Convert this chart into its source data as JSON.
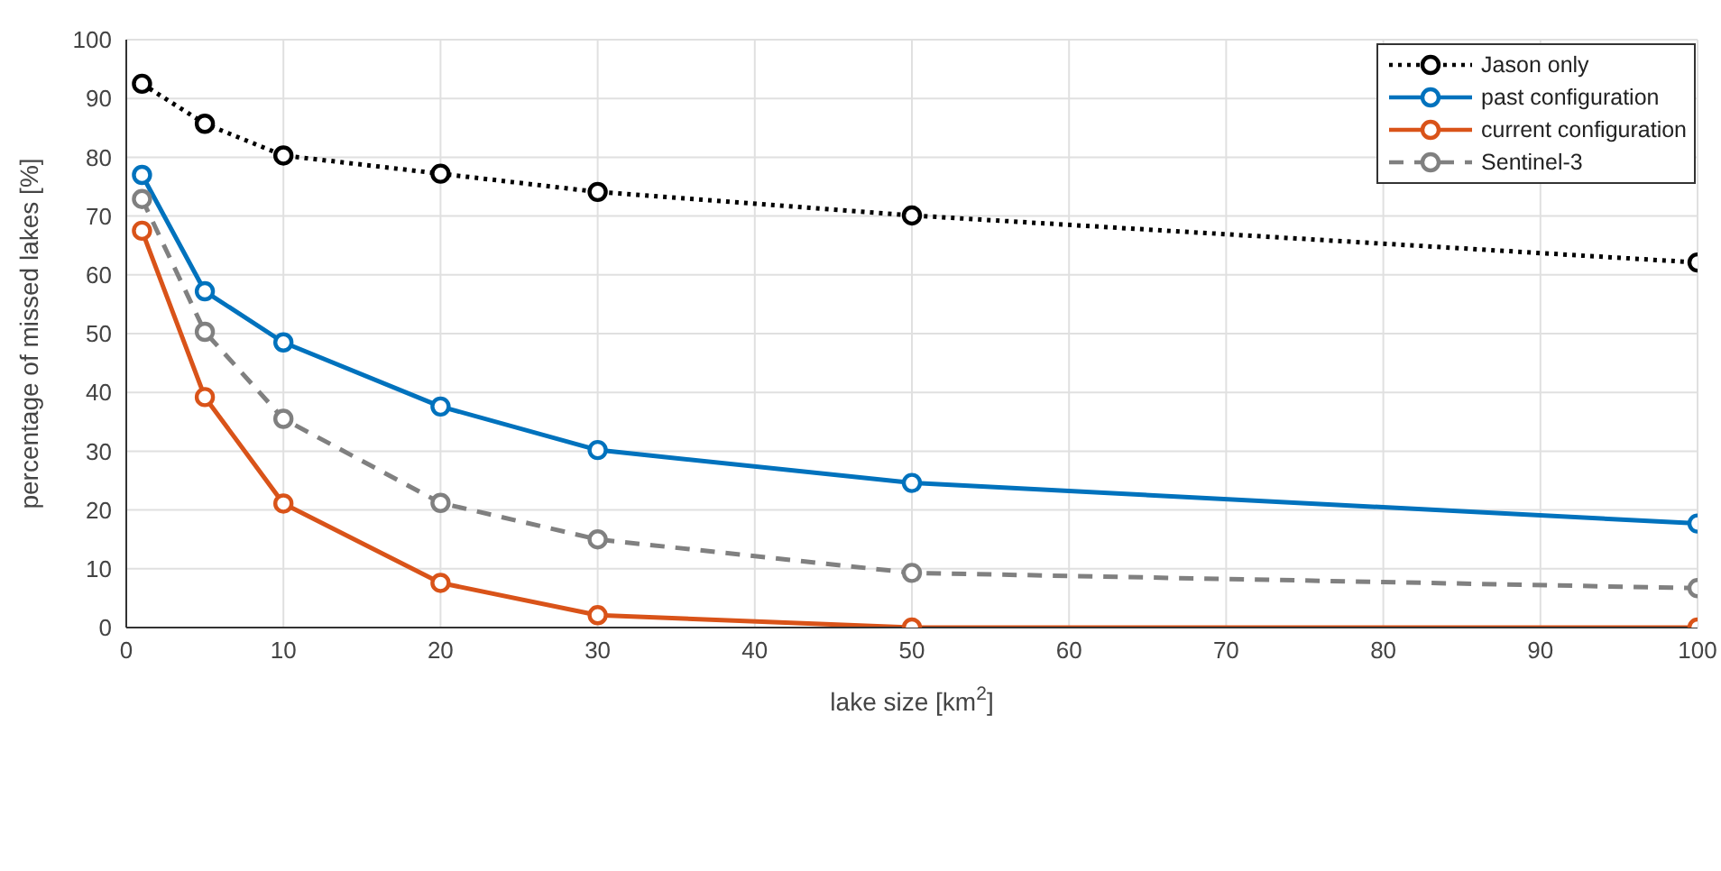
{
  "chart_data": {
    "type": "line",
    "xlabel": "lake size [km$^{2}$]",
    "ylabel": "percentage of missed lakes [%]",
    "x": [
      1,
      5,
      10,
      20,
      30,
      50,
      100
    ],
    "series": [
      {
        "name": "Jason only",
        "color": "#000000",
        "line_style": "dotted",
        "values": [
          92.5,
          85.7,
          80.3,
          77.2,
          74.1,
          70.1,
          62.1
        ]
      },
      {
        "name": "past configuration",
        "color": "#0072bd",
        "line_style": "solid",
        "values": [
          77,
          57.2,
          48.5,
          37.6,
          30.2,
          24.6,
          17.7
        ]
      },
      {
        "name": "current configuration",
        "color": "#d95319",
        "line_style": "solid",
        "values": [
          67.5,
          39.2,
          21.1,
          7.6,
          2.1,
          0,
          0
        ]
      },
      {
        "name": "Sentinel-3",
        "color": "#808080",
        "line_style": "dashed",
        "values": [
          72.9,
          50.3,
          35.5,
          21.2,
          15.0,
          9.3,
          6.7
        ]
      }
    ],
    "xlim": [
      0,
      100
    ],
    "xticks": [
      0,
      10,
      20,
      30,
      40,
      50,
      60,
      70,
      80,
      90,
      100
    ],
    "ylim": [
      0,
      100
    ],
    "yticks": [
      0,
      10,
      20,
      30,
      40,
      50,
      60,
      70,
      80,
      90,
      100
    ],
    "grid": true,
    "legend": "top right",
    "marker": "circle"
  }
}
